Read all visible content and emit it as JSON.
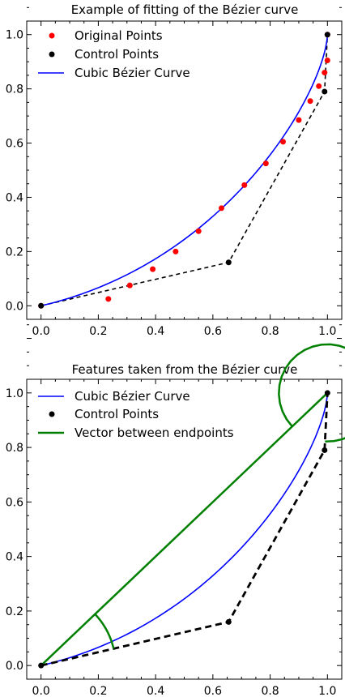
{
  "chart_data": [
    {
      "type": "scatter",
      "title": "Example of fitting of the Bézier curve",
      "xlim": [
        -0.05,
        1.05
      ],
      "ylim": [
        -0.05,
        1.05
      ],
      "xticks": [
        "0.0",
        "0.2",
        "0.4",
        "0.6",
        "0.8",
        "1.0"
      ],
      "yticks": [
        "0.0",
        "0.2",
        "0.4",
        "0.6",
        "0.8",
        "1.0"
      ],
      "legend_position": "top-left",
      "series": [
        {
          "name": "Original Points",
          "kind": "scatter",
          "color": "#ff0000",
          "x": [
            0.0,
            0.235,
            0.31,
            0.39,
            0.47,
            0.55,
            0.63,
            0.71,
            0.785,
            0.845,
            0.9,
            0.94,
            0.97,
            0.99,
            1.0,
            1.0
          ],
          "y": [
            0.0,
            0.025,
            0.075,
            0.135,
            0.2,
            0.275,
            0.36,
            0.445,
            0.525,
            0.605,
            0.685,
            0.755,
            0.81,
            0.86,
            0.905,
            1.0
          ]
        },
        {
          "name": "Control Points",
          "kind": "scatter",
          "color": "#000000",
          "x": [
            0.0,
            0.655,
            0.99,
            1.0
          ],
          "y": [
            0.0,
            0.16,
            0.79,
            1.0
          ]
        },
        {
          "name": "Cubic Bézier Curve",
          "kind": "line",
          "color": "#0000ff",
          "control_points": [
            [
              0.0,
              0.0
            ],
            [
              0.655,
              0.16
            ],
            [
              0.99,
              0.79
            ],
            [
              1.0,
              1.0
            ]
          ]
        }
      ]
    },
    {
      "type": "line",
      "title": "Features taken from the Bézier curve",
      "xlim": [
        -0.05,
        1.05
      ],
      "ylim": [
        -0.05,
        1.05
      ],
      "xticks": [
        "0.0",
        "0.2",
        "0.4",
        "0.6",
        "0.8",
        "1.0"
      ],
      "yticks": [
        "0.0",
        "0.2",
        "0.4",
        "0.6",
        "0.8",
        "1.0"
      ],
      "legend_position": "top-left",
      "series": [
        {
          "name": "Cubic Bézier Curve",
          "kind": "line",
          "color": "#0000ff",
          "control_points": [
            [
              0.0,
              0.0
            ],
            [
              0.655,
              0.16
            ],
            [
              0.99,
              0.79
            ],
            [
              1.0,
              1.0
            ]
          ]
        },
        {
          "name": "Control Points",
          "kind": "scatter",
          "color": "#000000",
          "x": [
            0.0,
            0.655,
            0.99,
            1.0
          ],
          "y": [
            0.0,
            0.16,
            0.79,
            1.0
          ]
        },
        {
          "name": "Vector between endpoints",
          "kind": "line",
          "color": "#008000",
          "x": [
            0.0,
            1.0
          ],
          "y": [
            0.0,
            1.0
          ]
        }
      ]
    }
  ]
}
